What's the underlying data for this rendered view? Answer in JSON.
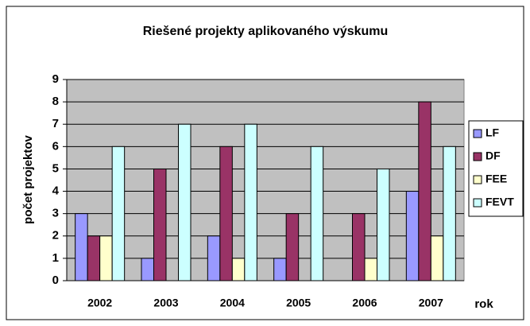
{
  "chart_data": {
    "type": "bar",
    "title": "Riešené projekty aplikovaného výskumu",
    "y_label": "počet projektov",
    "x_label": "rok",
    "categories": [
      "2002",
      "2003",
      "2004",
      "2005",
      "2006",
      "2007"
    ],
    "series": [
      {
        "name": "LF",
        "color": "#9999ff",
        "values": [
          3,
          1,
          2,
          1,
          0,
          4
        ]
      },
      {
        "name": "DF",
        "color": "#993366",
        "values": [
          2,
          5,
          6,
          3,
          3,
          8
        ]
      },
      {
        "name": "FEE",
        "color": "#ffffcc",
        "values": [
          2,
          0,
          1,
          0,
          1,
          2
        ]
      },
      {
        "name": "FEVT",
        "color": "#ccffff",
        "values": [
          6,
          7,
          7,
          6,
          5,
          6
        ]
      }
    ],
    "ylim": [
      0,
      9
    ],
    "yticks": [
      0,
      1,
      2,
      3,
      4,
      5,
      6,
      7,
      8,
      9
    ],
    "grid": true,
    "legend": "right"
  }
}
